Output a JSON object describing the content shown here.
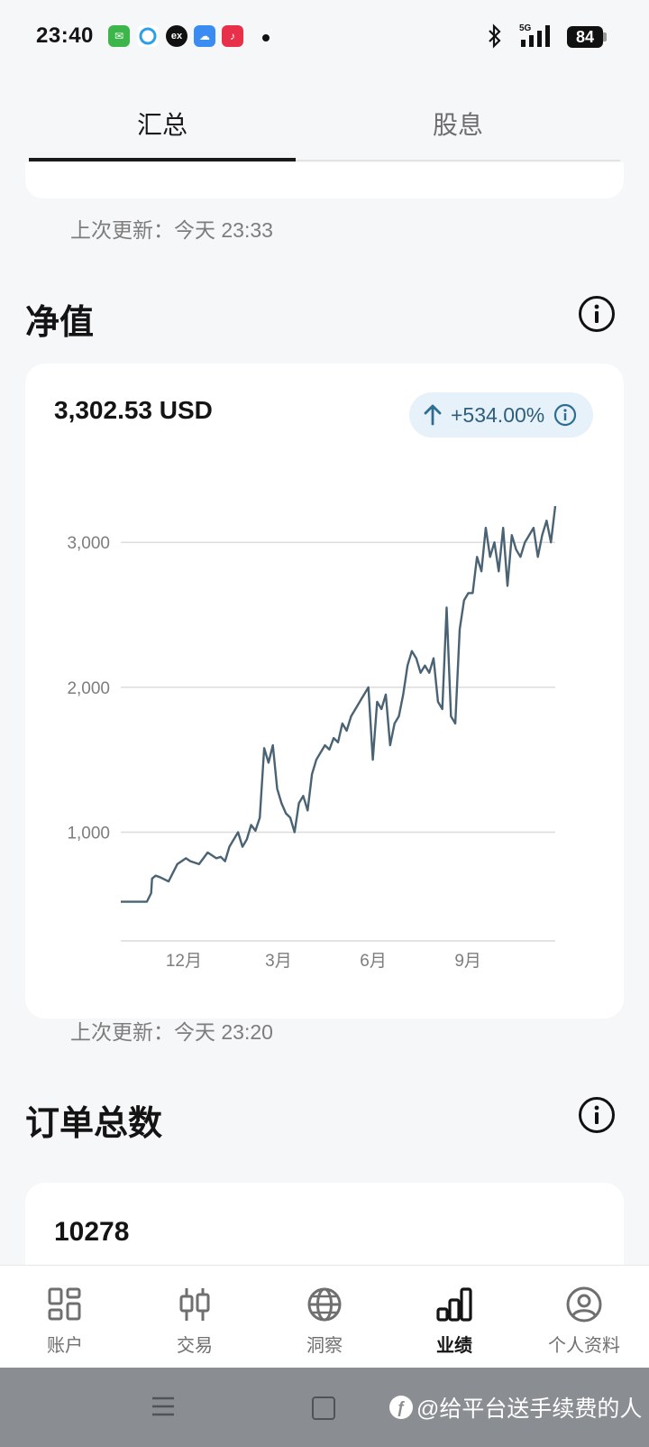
{
  "status_bar": {
    "time": "23:40",
    "battery": "84",
    "network": "5G"
  },
  "tabs": [
    {
      "label": "汇总",
      "active": true
    },
    {
      "label": "股息",
      "active": false
    }
  ],
  "summary_updated": "上次更新：今天 23:33",
  "net_value": {
    "title": "净值",
    "amount": "3,302.53 USD",
    "change": "+534.00%",
    "updated": "上次更新：今天 23:20"
  },
  "orders": {
    "title": "订单总数",
    "count": "10278"
  },
  "bottom_nav": [
    {
      "label": "账户",
      "icon": "grid-icon"
    },
    {
      "label": "交易",
      "icon": "candlestick-icon"
    },
    {
      "label": "洞察",
      "icon": "globe-icon"
    },
    {
      "label": "业绩",
      "icon": "bar-chart-icon",
      "active": true
    },
    {
      "label": "个人资料",
      "icon": "profile-icon"
    }
  ],
  "watermark": "@给平台送手续费的人",
  "colors": {
    "line": "#4a6374",
    "badge_bg": "#e6f1f9",
    "badge_text": "#2e5e7d"
  },
  "chart_data": {
    "type": "line",
    "title": "",
    "xlabel": "",
    "ylabel": "",
    "x_ticks": [
      "12月",
      "3月",
      "6月",
      "9月"
    ],
    "y_ticks": [
      1000,
      2000,
      3000
    ],
    "y_tick_labels": [
      "1,000",
      "2,000",
      "3,000"
    ],
    "ylim": [
      250,
      3300
    ],
    "xlim": [
      0,
      1
    ],
    "grid": true,
    "series": [
      {
        "x": [
          0.0,
          0.03,
          0.06,
          0.07,
          0.072,
          0.08,
          0.09,
          0.11,
          0.13,
          0.14,
          0.15,
          0.16,
          0.18,
          0.2,
          0.22,
          0.23,
          0.24,
          0.25,
          0.27,
          0.28,
          0.29,
          0.3,
          0.31,
          0.32,
          0.33,
          0.34,
          0.35,
          0.36,
          0.37,
          0.38,
          0.39,
          0.4,
          0.41,
          0.42,
          0.43,
          0.44,
          0.45,
          0.46,
          0.47,
          0.48,
          0.49,
          0.5,
          0.51,
          0.52,
          0.53,
          0.54,
          0.55,
          0.56,
          0.57,
          0.58,
          0.59,
          0.6,
          0.61,
          0.62,
          0.63,
          0.64,
          0.65,
          0.66,
          0.67,
          0.68,
          0.69,
          0.7,
          0.71,
          0.72,
          0.73,
          0.74,
          0.75,
          0.76,
          0.77,
          0.78,
          0.79,
          0.8,
          0.81,
          0.82,
          0.83,
          0.84,
          0.85,
          0.86,
          0.87,
          0.88,
          0.89,
          0.9,
          0.91,
          0.92,
          0.93,
          0.94,
          0.95,
          0.96,
          0.97,
          0.98,
          0.99,
          1.0
        ],
        "y": [
          520,
          520,
          520,
          580,
          680,
          700,
          690,
          660,
          780,
          800,
          820,
          800,
          780,
          860,
          820,
          830,
          800,
          900,
          1000,
          900,
          950,
          1050,
          1010,
          1100,
          1580,
          1480,
          1600,
          1300,
          1200,
          1130,
          1100,
          1000,
          1200,
          1250,
          1150,
          1400,
          1500,
          1550,
          1600,
          1570,
          1650,
          1620,
          1750,
          1700,
          1800,
          1850,
          1900,
          1950,
          2000,
          1500,
          1900,
          1850,
          1950,
          1600,
          1750,
          1800,
          1950,
          2150,
          2250,
          2200,
          2100,
          2150,
          2100,
          2200,
          1900,
          1850,
          2550,
          1800,
          1750,
          2400,
          2600,
          2650,
          2650,
          2900,
          2800,
          3100,
          2900,
          3000,
          2800,
          3100,
          2700,
          3050,
          2950,
          2900,
          3000,
          3050,
          3100,
          2900,
          3050,
          3150,
          3000,
          3250
        ]
      }
    ]
  }
}
